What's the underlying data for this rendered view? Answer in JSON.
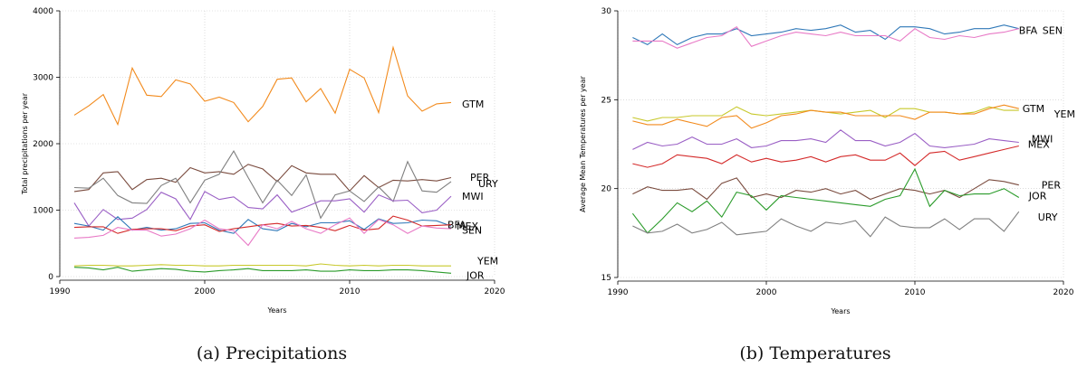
{
  "chart_data": [
    {
      "type": "line",
      "caption": "(a) Precipitations",
      "xlabel": "Years",
      "ylabel": "Total precipitations per year",
      "xlim": [
        1990,
        2020
      ],
      "ylim": [
        0,
        4000
      ],
      "xticks": [
        1990,
        2000,
        2010,
        2020
      ],
      "yticks": [
        0,
        1000,
        2000,
        3000,
        4000
      ],
      "x": [
        1991,
        1992,
        1993,
        1994,
        1995,
        1996,
        1997,
        1998,
        1999,
        2000,
        2001,
        2002,
        2003,
        2004,
        2005,
        2006,
        2007,
        2008,
        2009,
        2010,
        2011,
        2012,
        2013,
        2014,
        2015,
        2016,
        2017
      ],
      "series": [
        {
          "name": "GTM",
          "color": "#f28a1c",
          "label_y": 2600,
          "values": [
            2430,
            2570,
            2740,
            2290,
            3140,
            2730,
            2710,
            2960,
            2900,
            2640,
            2700,
            2620,
            2330,
            2560,
            2970,
            2990,
            2630,
            2830,
            2460,
            3120,
            2990,
            2470,
            3450,
            2720,
            2490,
            2600,
            2620
          ]
        },
        {
          "name": "PER",
          "color": "#7a4b3e",
          "label_y": 1500,
          "values": [
            1280,
            1310,
            1560,
            1580,
            1310,
            1460,
            1480,
            1420,
            1640,
            1560,
            1580,
            1540,
            1690,
            1620,
            1430,
            1670,
            1560,
            1540,
            1540,
            1290,
            1520,
            1340,
            1450,
            1440,
            1460,
            1440,
            1490
          ]
        },
        {
          "name": "URY",
          "color": "#7f7f7f",
          "label_y": 1400,
          "values": [
            1340,
            1330,
            1480,
            1220,
            1110,
            1100,
            1370,
            1480,
            1110,
            1450,
            1540,
            1890,
            1490,
            1110,
            1450,
            1220,
            1530,
            880,
            1230,
            1290,
            1130,
            1350,
            1130,
            1730,
            1290,
            1270,
            1430
          ]
        },
        {
          "name": "MWI",
          "color": "#9a5fc5",
          "label_y": 1210,
          "values": [
            1110,
            760,
            1010,
            860,
            880,
            1010,
            1270,
            1170,
            860,
            1280,
            1160,
            1200,
            1040,
            1020,
            1230,
            970,
            1050,
            1140,
            1140,
            1170,
            970,
            1230,
            1140,
            1150,
            960,
            1000,
            1210
          ]
        },
        {
          "name": "BFA",
          "color": "#2f78b8",
          "label_y": 780,
          "values": [
            800,
            760,
            700,
            900,
            700,
            740,
            700,
            720,
            800,
            810,
            700,
            650,
            860,
            720,
            690,
            800,
            750,
            810,
            810,
            840,
            710,
            870,
            800,
            810,
            850,
            840,
            760
          ]
        },
        {
          "name": "MEX",
          "color": "#d42a2a",
          "label_y": 760,
          "values": [
            740,
            750,
            750,
            650,
            710,
            720,
            720,
            690,
            760,
            780,
            680,
            720,
            750,
            780,
            800,
            760,
            770,
            740,
            690,
            770,
            700,
            720,
            910,
            850,
            760,
            770,
            780
          ]
        },
        {
          "name": "SEN",
          "color": "#e879c6",
          "label_y": 700,
          "values": [
            580,
            590,
            620,
            740,
            700,
            700,
            610,
            640,
            720,
            850,
            720,
            690,
            470,
            780,
            720,
            830,
            720,
            650,
            780,
            880,
            650,
            860,
            780,
            650,
            760,
            730,
            720
          ]
        },
        {
          "name": "YEM",
          "color": "#c7c82a",
          "label_y": 240,
          "values": [
            160,
            170,
            170,
            160,
            160,
            170,
            180,
            170,
            170,
            160,
            160,
            170,
            170,
            170,
            170,
            170,
            160,
            190,
            170,
            160,
            170,
            160,
            170,
            170,
            160,
            160,
            160
          ]
        },
        {
          "name": "JOR",
          "color": "#2a9b2a",
          "label_y": 20,
          "values": [
            140,
            130,
            100,
            140,
            80,
            100,
            120,
            110,
            80,
            70,
            90,
            100,
            120,
            90,
            90,
            90,
            100,
            80,
            80,
            100,
            90,
            90,
            100,
            100,
            90,
            70,
            50
          ]
        }
      ]
    },
    {
      "type": "line",
      "caption": "(b) Temperatures",
      "xlabel": "Years",
      "ylabel": "Average Mean Temperatures per year",
      "xlim": [
        1990,
        2020
      ],
      "ylim": [
        15,
        30
      ],
      "xticks": [
        1990,
        2000,
        2010,
        2020
      ],
      "yticks": [
        15,
        20,
        25,
        30
      ],
      "x": [
        1991,
        1992,
        1993,
        1994,
        1995,
        1996,
        1997,
        1998,
        1999,
        2000,
        2001,
        2002,
        2003,
        2004,
        2005,
        2006,
        2007,
        2008,
        2009,
        2010,
        2011,
        2012,
        2013,
        2014,
        2015,
        2016,
        2017
      ],
      "series": [
        {
          "name": "BFA",
          "color": "#2f78b8",
          "label_y": 28.9,
          "values": [
            28.5,
            28.1,
            28.7,
            28.1,
            28.5,
            28.7,
            28.7,
            29.0,
            28.6,
            28.7,
            28.8,
            29.0,
            28.9,
            29.0,
            29.2,
            28.8,
            28.9,
            28.4,
            29.1,
            29.1,
            29.0,
            28.7,
            28.8,
            29.0,
            29.0,
            29.2,
            29.0
          ]
        },
        {
          "name": "SEN",
          "color": "#e879c6",
          "label_y": 28.9,
          "values": [
            28.3,
            28.3,
            28.3,
            27.9,
            28.2,
            28.5,
            28.6,
            29.1,
            28.0,
            28.3,
            28.6,
            28.8,
            28.7,
            28.6,
            28.8,
            28.6,
            28.6,
            28.6,
            28.3,
            29.0,
            28.5,
            28.4,
            28.6,
            28.5,
            28.7,
            28.8,
            29.0
          ]
        },
        {
          "name": "GTM",
          "color": "#c7c82a",
          "label_y": 24.5,
          "values": [
            24.0,
            23.8,
            24.0,
            24.0,
            24.1,
            24.1,
            24.1,
            24.6,
            24.2,
            24.1,
            24.2,
            24.3,
            24.4,
            24.3,
            24.2,
            24.3,
            24.4,
            24.0,
            24.5,
            24.5,
            24.3,
            24.3,
            24.2,
            24.3,
            24.6,
            24.4,
            24.4
          ]
        },
        {
          "name": "YEM",
          "color": "#f28a1c",
          "label_y": 24.2,
          "values": [
            23.8,
            23.6,
            23.6,
            23.9,
            23.7,
            23.5,
            24.0,
            24.1,
            23.4,
            23.7,
            24.1,
            24.2,
            24.4,
            24.3,
            24.3,
            24.1,
            24.1,
            24.1,
            24.1,
            23.9,
            24.3,
            24.3,
            24.2,
            24.2,
            24.5,
            24.7,
            24.5
          ]
        },
        {
          "name": "MWI",
          "color": "#9a5fc5",
          "label_y": 22.8,
          "values": [
            22.2,
            22.6,
            22.4,
            22.5,
            22.9,
            22.5,
            22.5,
            22.8,
            22.3,
            22.4,
            22.7,
            22.7,
            22.8,
            22.6,
            23.3,
            22.7,
            22.7,
            22.4,
            22.6,
            23.1,
            22.4,
            22.3,
            22.4,
            22.5,
            22.8,
            22.7,
            22.6
          ]
        },
        {
          "name": "MEX",
          "color": "#d42a2a",
          "label_y": 22.5,
          "values": [
            21.4,
            21.2,
            21.4,
            21.9,
            21.8,
            21.7,
            21.4,
            21.9,
            21.5,
            21.7,
            21.5,
            21.6,
            21.8,
            21.5,
            21.8,
            21.9,
            21.6,
            21.6,
            22.0,
            21.3,
            22.0,
            22.1,
            21.6,
            21.8,
            22.0,
            22.2,
            22.4
          ]
        },
        {
          "name": "PER",
          "color": "#7a4b3e",
          "label_y": 20.2,
          "values": [
            19.7,
            20.1,
            19.9,
            19.9,
            20.0,
            19.4,
            20.3,
            20.6,
            19.5,
            19.7,
            19.5,
            19.9,
            19.8,
            20.0,
            19.7,
            19.9,
            19.4,
            19.7,
            20.0,
            19.9,
            19.7,
            19.9,
            19.5,
            20.0,
            20.5,
            20.4,
            20.2
          ]
        },
        {
          "name": "JOR",
          "color": "#2a9b2a",
          "label_y": 19.6,
          "values": [
            18.6,
            17.5,
            18.3,
            19.2,
            18.7,
            19.3,
            18.4,
            19.8,
            19.6,
            18.8,
            19.6,
            19.5,
            19.4,
            19.3,
            19.2,
            19.1,
            19.0,
            19.4,
            19.6,
            21.1,
            19.0,
            19.9,
            19.6,
            19.7,
            19.7,
            20.0,
            19.5
          ]
        },
        {
          "name": "URY",
          "color": "#7f7f7f",
          "label_y": 18.4,
          "values": [
            17.9,
            17.5,
            17.6,
            18.0,
            17.5,
            17.7,
            18.1,
            17.4,
            17.5,
            17.6,
            18.3,
            17.9,
            17.6,
            18.1,
            18.0,
            18.2,
            17.3,
            18.4,
            17.9,
            17.8,
            17.8,
            18.3,
            17.7,
            18.3,
            18.3,
            17.6,
            18.7
          ]
        }
      ]
    }
  ]
}
